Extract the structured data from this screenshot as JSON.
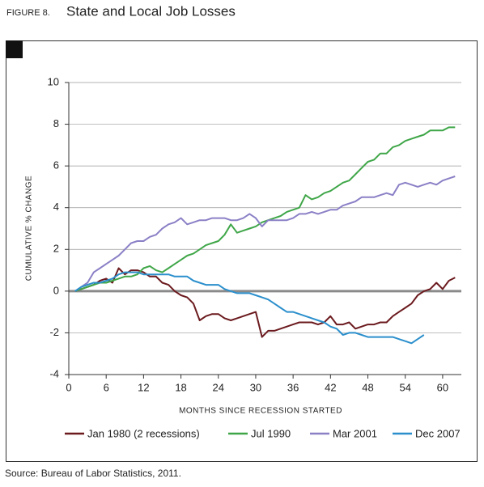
{
  "chart_data": {
    "type": "line",
    "figure_label": "FIGURE 8.",
    "title": "State and Local Job Losses",
    "y_label": "CUMULATIVE % CHANGE",
    "x_label": "MONTHS SINCE RECESSION STARTED",
    "source": "Source:  Bureau of Labor Statistics, 2011.",
    "x": [
      1,
      2,
      3,
      4,
      5,
      6,
      7,
      8,
      9,
      10,
      11,
      12,
      13,
      14,
      15,
      16,
      17,
      18,
      19,
      20,
      21,
      22,
      23,
      24,
      25,
      26,
      27,
      28,
      29,
      30,
      31,
      32,
      33,
      34,
      35,
      36,
      37,
      38,
      39,
      40,
      41,
      42,
      43,
      44,
      45,
      46,
      47,
      48,
      49,
      50,
      51,
      52,
      53,
      54,
      55,
      56,
      57,
      58,
      59,
      60,
      61,
      62
    ],
    "xlim": [
      0,
      63
    ],
    "xticks": [
      0,
      6,
      12,
      18,
      24,
      30,
      36,
      42,
      48,
      54,
      60
    ],
    "ylim": [
      -4,
      10
    ],
    "yticks": [
      -4,
      -2,
      0,
      2,
      4,
      6,
      8,
      10
    ],
    "grid": true,
    "series": [
      {
        "name": "Jan 1980 (2 recessions)",
        "color": "#6b1a1e",
        "values": [
          0,
          0.1,
          0.2,
          0.3,
          0.5,
          0.6,
          0.4,
          1.1,
          0.8,
          1.0,
          1.0,
          0.9,
          0.7,
          0.7,
          0.4,
          0.3,
          0.0,
          -0.2,
          -0.3,
          -0.6,
          -1.4,
          -1.2,
          -1.1,
          -1.1,
          -1.3,
          -1.4,
          -1.3,
          -1.2,
          -1.1,
          -1.0,
          -2.2,
          -1.9,
          -1.9,
          -1.8,
          -1.7,
          -1.6,
          -1.5,
          -1.5,
          -1.5,
          -1.6,
          -1.5,
          -1.2,
          -1.6,
          -1.6,
          -1.5,
          -1.8,
          -1.7,
          -1.6,
          -1.6,
          -1.5,
          -1.5,
          -1.2,
          -1.0,
          -0.8,
          -0.6,
          -0.2,
          0.0,
          0.1,
          0.4,
          0.1,
          0.5,
          0.65
        ]
      },
      {
        "name": "Jul 1990",
        "color": "#3fa648",
        "values": [
          0,
          0.1,
          0.2,
          0.3,
          0.4,
          0.4,
          0.5,
          0.6,
          0.7,
          0.7,
          0.8,
          1.1,
          1.2,
          1.0,
          0.9,
          1.1,
          1.3,
          1.5,
          1.7,
          1.8,
          2.0,
          2.2,
          2.3,
          2.4,
          2.7,
          3.2,
          2.8,
          2.9,
          3.0,
          3.1,
          3.3,
          3.4,
          3.5,
          3.6,
          3.8,
          3.9,
          4.0,
          4.6,
          4.4,
          4.5,
          4.7,
          4.8,
          5.0,
          5.2,
          5.3,
          5.6,
          5.9,
          6.2,
          6.3,
          6.6,
          6.6,
          6.9,
          7.0,
          7.2,
          7.3,
          7.4,
          7.5,
          7.7,
          7.7,
          7.7,
          7.85,
          7.85
        ]
      },
      {
        "name": "Mar 2001",
        "color": "#8a80c6",
        "values": [
          0,
          0.2,
          0.4,
          0.9,
          1.1,
          1.3,
          1.5,
          1.7,
          2.0,
          2.3,
          2.4,
          2.4,
          2.6,
          2.7,
          3.0,
          3.2,
          3.3,
          3.5,
          3.2,
          3.3,
          3.4,
          3.4,
          3.5,
          3.5,
          3.5,
          3.4,
          3.4,
          3.5,
          3.7,
          3.5,
          3.1,
          3.4,
          3.4,
          3.4,
          3.4,
          3.5,
          3.7,
          3.7,
          3.8,
          3.7,
          3.8,
          3.9,
          3.9,
          4.1,
          4.2,
          4.3,
          4.5,
          4.5,
          4.5,
          4.6,
          4.7,
          4.6,
          5.1,
          5.2,
          5.1,
          5.0,
          5.1,
          5.2,
          5.1,
          5.3,
          5.4,
          5.5
        ]
      },
      {
        "name": "Dec 2007",
        "color": "#2b8fcc",
        "values": [
          0,
          0.2,
          0.3,
          0.4,
          0.4,
          0.5,
          0.6,
          0.8,
          0.9,
          0.9,
          0.9,
          0.8,
          0.8,
          0.8,
          0.8,
          0.8,
          0.7,
          0.7,
          0.7,
          0.5,
          0.4,
          0.3,
          0.3,
          0.3,
          0.1,
          0.0,
          -0.1,
          -0.1,
          -0.1,
          -0.2,
          -0.3,
          -0.4,
          -0.6,
          -0.8,
          -1.0,
          -1.0,
          -1.1,
          -1.2,
          -1.3,
          -1.4,
          -1.5,
          -1.7,
          -1.8,
          -2.1,
          -2.0,
          -2.0,
          -2.1,
          -2.2,
          -2.2,
          -2.2,
          -2.2,
          -2.2,
          -2.3,
          -2.4,
          -2.5,
          -2.3,
          -2.1,
          null,
          null,
          null,
          null,
          null
        ]
      }
    ]
  }
}
